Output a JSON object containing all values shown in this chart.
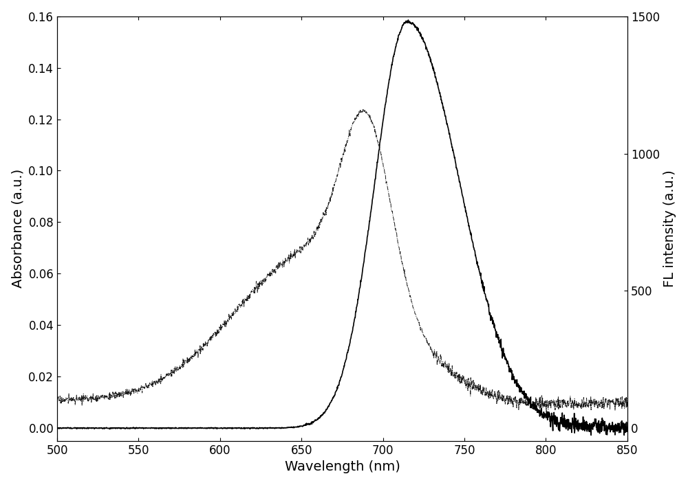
{
  "x_min": 500,
  "x_max": 850,
  "x_ticks": [
    500,
    550,
    600,
    650,
    700,
    750,
    800,
    850
  ],
  "xlabel": "Wavelength (nm)",
  "ylabel_left": "Absorbance (a.u.)",
  "ylabel_right": "FL intensity (a.u.)",
  "ylim_left": [
    -0.005,
    0.16
  ],
  "ylim_right": [
    -46.875,
    1500
  ],
  "yticks_left": [
    0.0,
    0.02,
    0.04,
    0.06,
    0.08,
    0.1,
    0.12,
    0.14,
    0.16
  ],
  "yticks_right": [
    0,
    500,
    1000,
    1500
  ],
  "background_color": "#ffffff",
  "line_color": "#000000",
  "font_size_labels": 14,
  "font_size_ticks": 12
}
